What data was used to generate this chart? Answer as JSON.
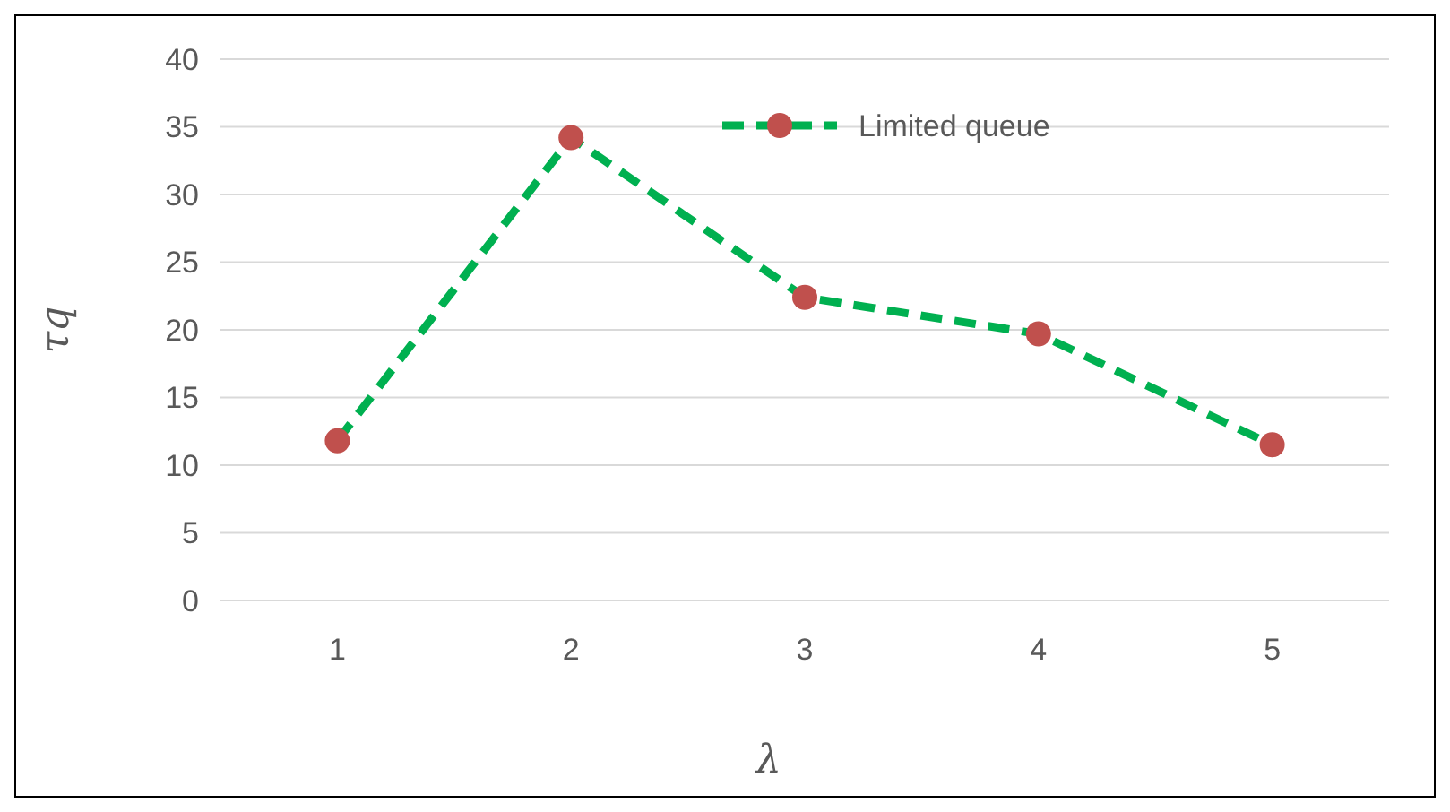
{
  "chart_data": {
    "type": "line",
    "xlabel": "λ",
    "ylabel": "τq",
    "categories": [
      "1",
      "2",
      "3",
      "4",
      "5"
    ],
    "series": [
      {
        "name": "Limited queue",
        "color": "#00b050",
        "colors": [
          "#c0504d",
          "#c0504d",
          "#c0504d",
          "#c0504d",
          "#c0504d"
        ],
        "values": [
          11.8,
          34.2,
          22.4,
          19.7,
          11.5
        ]
      }
    ],
    "ylim": [
      0,
      40
    ],
    "yticks": [
      0,
      5,
      10,
      15,
      20,
      25,
      30,
      35,
      40
    ],
    "grid": "y",
    "legend": "top",
    "marker": "circle",
    "line_style": "dashed"
  }
}
